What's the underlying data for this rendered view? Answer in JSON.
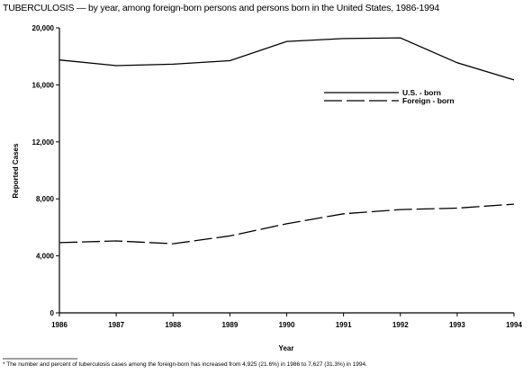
{
  "chart_data": {
    "type": "line",
    "title": "TUBERCULOSIS — by year, among foreign-born persons and persons born in the United States, 1986-1994",
    "xlabel": "Year",
    "ylabel": "Reported Cases",
    "x": [
      "1986",
      "1987",
      "1988",
      "1989",
      "1990",
      "1991",
      "1992",
      "1993",
      "1994"
    ],
    "ylim": [
      0,
      20000
    ],
    "yticks": [
      0,
      4000,
      8000,
      12000,
      16000,
      20000
    ],
    "ytick_labels": [
      "0",
      "4,000",
      "8,000",
      "12,000",
      "16,000",
      "20,000"
    ],
    "grid": false,
    "legend_position": "top-right",
    "series": [
      {
        "name": "U.S. - born",
        "style": "solid",
        "values": [
          17750,
          17350,
          17450,
          17700,
          19050,
          19250,
          19300,
          17550,
          16350
        ]
      },
      {
        "name": "Foreign - born",
        "style": "dashed",
        "values": [
          4925,
          5050,
          4850,
          5400,
          6250,
          6950,
          7250,
          7350,
          7627
        ]
      }
    ],
    "footnote": "* The number and percent of tuberculosis cases among the foreign-born has increased from 4,925 (21.6%) in 1986 to 7,627 (31.3%) in 1994."
  }
}
